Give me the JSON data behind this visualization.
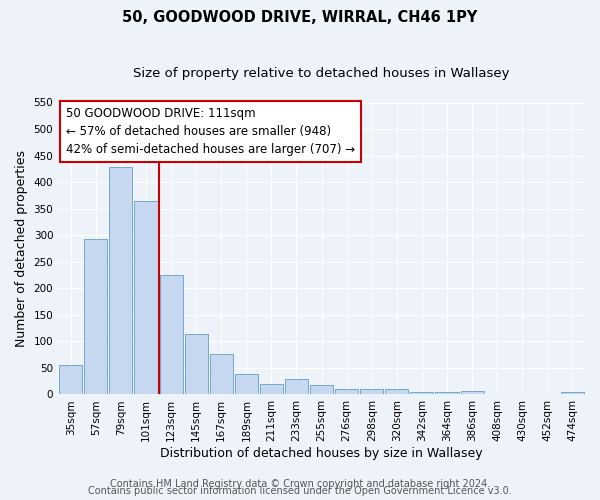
{
  "title": "50, GOODWOOD DRIVE, WIRRAL, CH46 1PY",
  "subtitle": "Size of property relative to detached houses in Wallasey",
  "xlabel": "Distribution of detached houses by size in Wallasey",
  "ylabel": "Number of detached properties",
  "categories": [
    "35sqm",
    "57sqm",
    "79sqm",
    "101sqm",
    "123sqm",
    "145sqm",
    "167sqm",
    "189sqm",
    "211sqm",
    "233sqm",
    "255sqm",
    "276sqm",
    "298sqm",
    "320sqm",
    "342sqm",
    "364sqm",
    "386sqm",
    "408sqm",
    "430sqm",
    "452sqm",
    "474sqm"
  ],
  "values": [
    55,
    292,
    428,
    365,
    225,
    113,
    76,
    38,
    20,
    29,
    18,
    10,
    10,
    10,
    4,
    4,
    6,
    0,
    0,
    0,
    5
  ],
  "bar_color": "#c5d8f0",
  "bar_edge_color": "#4a90c4",
  "vline_x": 3.5,
  "vline_color": "#cc0000",
  "annotation_title": "50 GOODWOOD DRIVE: 111sqm",
  "annotation_line1": "← 57% of detached houses are smaller (948)",
  "annotation_line2": "42% of semi-detached houses are larger (707) →",
  "annotation_box_color": "#ffffff",
  "annotation_box_edge": "#cc0000",
  "ylim": [
    0,
    550
  ],
  "yticks": [
    0,
    50,
    100,
    150,
    200,
    250,
    300,
    350,
    400,
    450,
    500,
    550
  ],
  "footer1": "Contains HM Land Registry data © Crown copyright and database right 2024.",
  "footer2": "Contains public sector information licensed under the Open Government Licence v3.0.",
  "bg_color": "#eef2f9",
  "grid_color": "#ffffff",
  "title_fontsize": 10.5,
  "subtitle_fontsize": 9.5,
  "axis_label_fontsize": 9,
  "tick_fontsize": 7.5,
  "annotation_fontsize": 8.5,
  "footer_fontsize": 7
}
